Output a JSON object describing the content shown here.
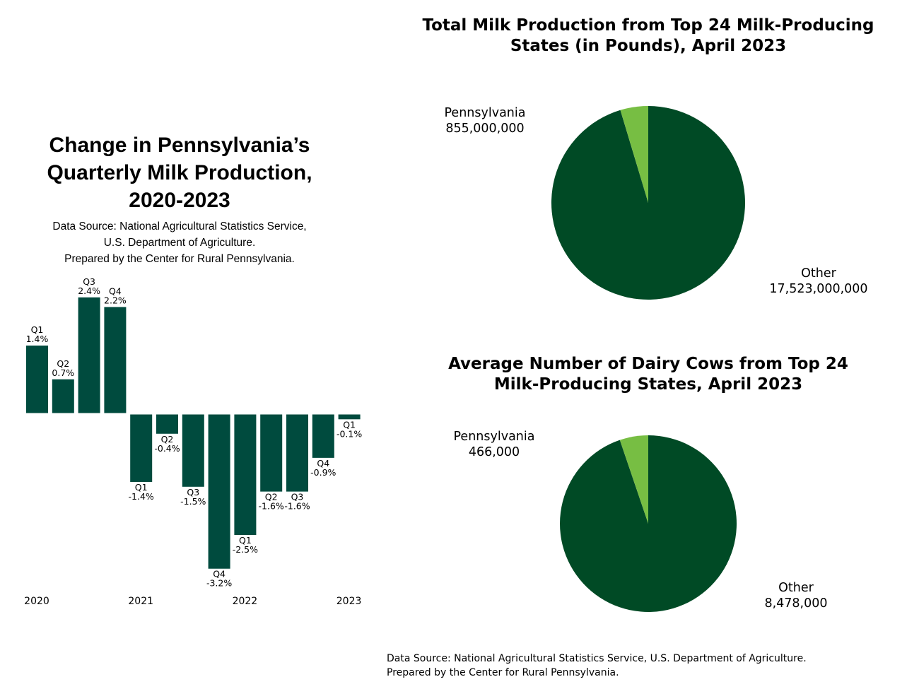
{
  "colors": {
    "bar": "#004B3E",
    "pie_large": "#004A25",
    "pie_small": "#77BE43",
    "text": "#000000"
  },
  "left_panel": {
    "title_lines": [
      "Change in Pennsylvania’s",
      "Quarterly Milk Production,",
      "2020-2023"
    ],
    "source_lines": [
      "Data Source: National Agricultural Statistics Service,",
      "U.S. Department of Agriculture.",
      "Prepared by the Center for Rural Pennsylvania."
    ]
  },
  "bottom_source_lines": [
    "Data Source: National Agricultural Statistics Service, U.S. Department of Agriculture.",
    "Prepared by the Center for Rural Pennsylvania."
  ],
  "pies": [
    {
      "title_lines": [
        "Total Milk Production from Top 24 Milk-Producing",
        "States (in Pounds), April 2023"
      ],
      "label_pa_name": "Pennsylvania",
      "label_pa_value": "855,000,000",
      "label_other_name": "Other",
      "label_other_value": "17,523,000,000"
    },
    {
      "title_lines": [
        "Average Number of Dairy Cows from Top 24",
        "Milk-Producing States, April 2023"
      ],
      "label_pa_name": "Pennsylvania",
      "label_pa_value": "466,000",
      "label_other_name": "Other",
      "label_other_value": "8,478,000"
    }
  ],
  "chart_data": [
    {
      "type": "bar",
      "title": "Change in Pennsylvania’s Quarterly Milk Production, 2020-2023",
      "year_labels": [
        "2020",
        "2021",
        "2022",
        "2023"
      ],
      "bars": [
        {
          "year": "2020",
          "quarter": "Q1",
          "value": 1.4,
          "label": "1.4%"
        },
        {
          "year": "2020",
          "quarter": "Q2",
          "value": 0.7,
          "label": "0.7%"
        },
        {
          "year": "2020",
          "quarter": "Q3",
          "value": 2.4,
          "label": "2.4%"
        },
        {
          "year": "2020",
          "quarter": "Q4",
          "value": 2.2,
          "label": "2.2%"
        },
        {
          "year": "2021",
          "quarter": "Q1",
          "value": -1.4,
          "label": "-1.4%"
        },
        {
          "year": "2021",
          "quarter": "Q2",
          "value": -0.4,
          "label": "-0.4%"
        },
        {
          "year": "2021",
          "quarter": "Q3",
          "value": -1.5,
          "label": "-1.5%"
        },
        {
          "year": "2021",
          "quarter": "Q4",
          "value": -3.2,
          "label": "-3.2%"
        },
        {
          "year": "2022",
          "quarter": "Q1",
          "value": -2.5,
          "label": "-2.5%"
        },
        {
          "year": "2022",
          "quarter": "Q2",
          "value": -1.6,
          "label": "-1.6%"
        },
        {
          "year": "2022",
          "quarter": "Q3",
          "value": -1.6,
          "label": "-1.6%"
        },
        {
          "year": "2022",
          "quarter": "Q4",
          "value": -0.9,
          "label": "-0.9%"
        },
        {
          "year": "2023",
          "quarter": "Q1",
          "value": -0.1,
          "label": "-0.1%"
        }
      ],
      "grid": false,
      "legend": "none"
    },
    {
      "type": "pie",
      "title": "Total Milk Production from Top 24 Milk-Producing States (in Pounds), April 2023",
      "slices": [
        {
          "name": "Pennsylvania",
          "value": 855000000,
          "label": "855,000,000"
        },
        {
          "name": "Other",
          "value": 17523000000,
          "label": "17,523,000,000"
        }
      ]
    },
    {
      "type": "pie",
      "title": "Average Number of Dairy Cows from Top 24 Milk-Producing States, April 2023",
      "slices": [
        {
          "name": "Pennsylvania",
          "value": 466000,
          "label": "466,000"
        },
        {
          "name": "Other",
          "value": 8478000,
          "label": "8,478,000"
        }
      ]
    }
  ]
}
